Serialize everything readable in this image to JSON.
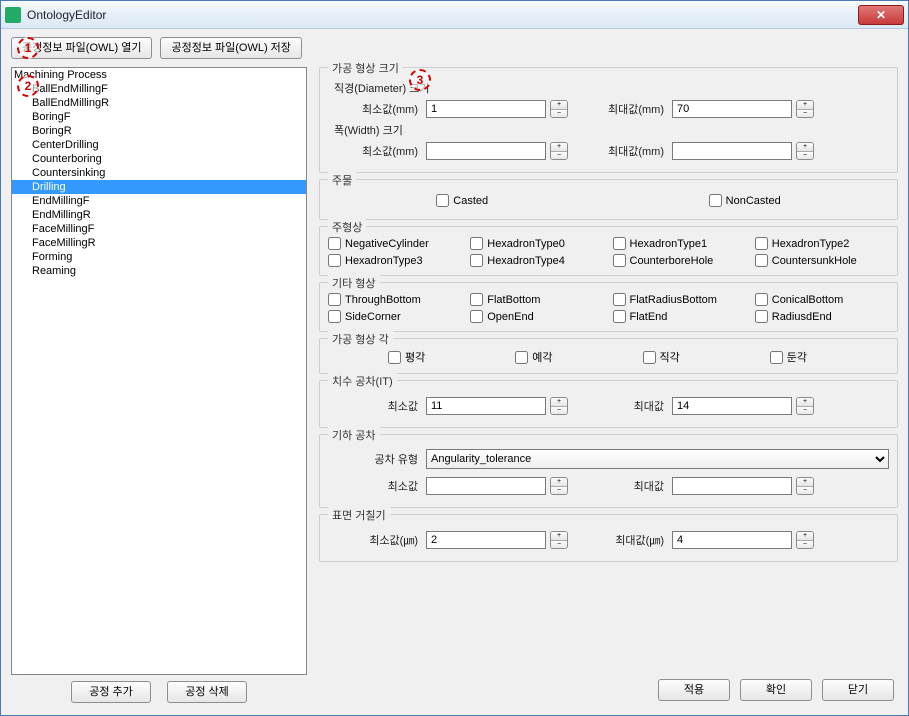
{
  "window": {
    "title": "OntologyEditor"
  },
  "toolbar": {
    "open_label": "공정정보 파일(OWL) 열기",
    "save_label": "공정정보 파일(OWL) 저장"
  },
  "markers": {
    "m1": "1",
    "m2": "2",
    "m3": "3"
  },
  "process_list": {
    "header": "Machining Process",
    "items": [
      "BallEndMillingF",
      "BallEndMillingR",
      "BoringF",
      "BoringR",
      "CenterDrilling",
      "Counterboring",
      "Countersinking",
      "Drilling",
      "EndMillingF",
      "EndMillingR",
      "FaceMillingF",
      "FaceMillingR",
      "Forming",
      "Reaming"
    ],
    "selected_index": 7,
    "add_label": "공정 추가",
    "delete_label": "공정 삭제"
  },
  "size_group": {
    "legend": "가공 형상 크기",
    "diameter_label": "직경(Diameter) 크기",
    "width_label": "폭(Width) 크기",
    "min_label": "최소값(mm)",
    "max_label": "최대값(mm)",
    "diameter_min": "1",
    "diameter_max": "70",
    "width_min": "",
    "width_max": ""
  },
  "casting": {
    "legend": "주물",
    "casted": "Casted",
    "noncasted": "NonCasted"
  },
  "main_shape": {
    "legend": "주형상",
    "items": [
      "NegativeCylinder",
      "HexadronType0",
      "HexadronType1",
      "HexadronType2",
      "HexadronType3",
      "HexadronType4",
      "CounterboreHole",
      "CountersunkHole"
    ]
  },
  "other_shape": {
    "legend": "기타 형상",
    "items": [
      "ThroughBottom",
      "FlatBottom",
      "FlatRadiusBottom",
      "ConicalBottom",
      "SideCorner",
      "OpenEnd",
      "FlatEnd",
      "RadiusdEnd"
    ]
  },
  "angle": {
    "legend": "가공 형상 각",
    "items": [
      "평각",
      "예각",
      "직각",
      "둔각"
    ]
  },
  "tolerance_it": {
    "legend": "치수 공차(IT)",
    "min_label": "최소값",
    "max_label": "최대값",
    "min": "11",
    "max": "14"
  },
  "geo_tolerance": {
    "legend": "기하 공차",
    "type_label": "공차 유형",
    "type_value": "Angularity_tolerance",
    "min_label": "최소값",
    "max_label": "최대값",
    "min": "",
    "max": ""
  },
  "roughness": {
    "legend": "표면 거칠기",
    "min_label": "최소값(㎛)",
    "max_label": "최대값(㎛)",
    "min": "2",
    "max": "4"
  },
  "buttons": {
    "apply": "적용",
    "ok": "확인",
    "close": "닫기"
  }
}
